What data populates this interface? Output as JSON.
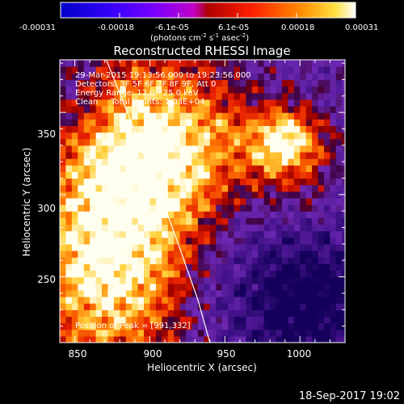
{
  "colorbar": {
    "ticks": [
      "-0.00031",
      "-0.00018",
      "-6.1e-05",
      "6.1e-05",
      "0.00018",
      "0.00031"
    ],
    "units_prefix": "(photons cm",
    "units_exp1": "-2",
    "units_mid": " s",
    "units_exp2": "-1",
    "units_mid2": " asec",
    "units_exp3": "-2",
    "units_suffix": ")"
  },
  "chart_data": {
    "type": "heatmap",
    "title": "Reconstructed RHESSI Image",
    "xlabel": "Heliocentric X (arcsec)",
    "ylabel": "Heliocentric Y (arcsec)",
    "xlim": [
      840,
      1030
    ],
    "ylim": [
      210,
      382
    ],
    "xticks": [
      "850",
      "900",
      "950",
      "1000"
    ],
    "yticks": [
      "250",
      "300",
      "350"
    ],
    "color_range": [
      -0.00031,
      0.00031
    ],
    "colormap": "rainbow-to-hot (blue/purple negative, red-orange-yellow-white positive)",
    "peak_position": [
      991,
      332
    ],
    "limb_curve": [
      [
        871,
        382
      ],
      [
        885,
        350
      ],
      [
        898,
        320
      ],
      [
        911,
        290
      ],
      [
        922,
        262
      ],
      [
        932,
        236
      ],
      [
        940,
        210
      ]
    ],
    "info": [
      "29-Mar-2015 19:13:56.000 to 19:23:56.000",
      "Detectors: 3F 5F 6F 7F 8F 9F, Att 0",
      "Energy Range: 12.0 - 25.0 keV",
      "Clean     Total counts: 1.03E+04"
    ],
    "peak_label": "Position of Peak = [991,332]"
  },
  "timestamp": "18-Sep-2017 19:02"
}
